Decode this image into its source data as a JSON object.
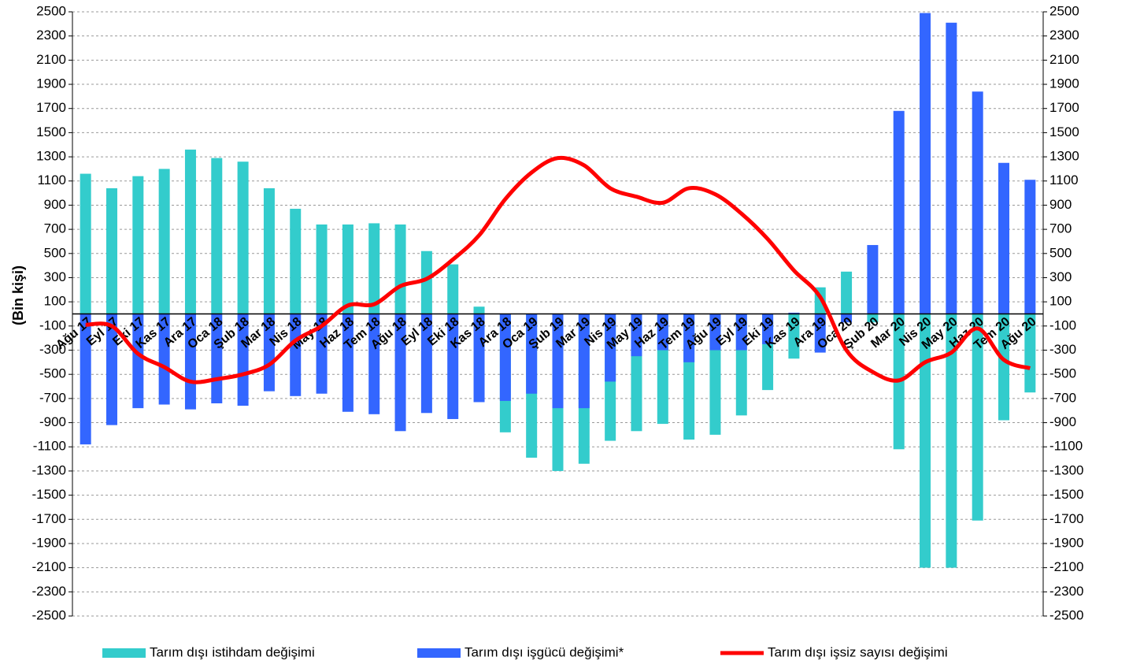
{
  "chart_data": {
    "type": "bar_line",
    "y_label": "(Bin kişi)",
    "categories": [
      "Ağu 17",
      "Eyl 17",
      "Eki 17",
      "Kas 17",
      "Ara 17",
      "Oca 18",
      "Şub 18",
      "Mar 18",
      "Nis 18",
      "May 18",
      "Haz 18",
      "Tem 18",
      "Ağu 18",
      "Eyl 18",
      "Eki 18",
      "Kas 18",
      "Ara 18",
      "Oca 19",
      "Şub 19",
      "Mar 19",
      "Nis 19",
      "May 19",
      "Haz 19",
      "Tem 19",
      "Ağu 19",
      "Eyl 19",
      "Eki 19",
      "Kas 19",
      "Ara 19",
      "Oca 20",
      "Şub 20",
      "Mar 20",
      "Nis 20",
      "May 20",
      "Haz 20",
      "Tem 20",
      "Ağu 20"
    ],
    "series": [
      {
        "name": "Tarım dışı istihdam değişimi",
        "type": "bar",
        "color": "#33cccc",
        "values": [
          1160,
          1040,
          1140,
          1200,
          1360,
          1290,
          1260,
          1040,
          870,
          740,
          740,
          750,
          740,
          520,
          410,
          60,
          -980,
          -1190,
          -1300,
          -1240,
          -1050,
          -970,
          -910,
          -1040,
          -1000,
          -840,
          -630,
          -370,
          220,
          350,
          -70,
          -1120,
          -2100,
          -2100,
          -1710,
          -880,
          -650
        ]
      },
      {
        "name": "Tarım dışı işgücü değişimi*",
        "type": "bar",
        "color": "#3366ff",
        "values": [
          -1080,
          -920,
          -780,
          -750,
          -790,
          -740,
          -760,
          -640,
          -680,
          -660,
          -810,
          -830,
          -970,
          -820,
          -870,
          -730,
          -720,
          -660,
          -780,
          -780,
          -560,
          -350,
          -300,
          -400,
          -300,
          -300,
          -250,
          10,
          -320,
          -70,
          570,
          1680,
          2490,
          2410,
          1840,
          1250,
          1110
        ]
      },
      {
        "name": "Tarım dışı işsiz sayısı değişimi",
        "type": "line",
        "color": "#ff0000",
        "values": [
          -90,
          -100,
          -330,
          -440,
          -560,
          -540,
          -500,
          -420,
          -220,
          -100,
          70,
          80,
          230,
          290,
          450,
          650,
          950,
          1170,
          1290,
          1230,
          1040,
          970,
          920,
          1040,
          990,
          830,
          620,
          360,
          140,
          -300,
          -480,
          -550,
          -400,
          -320,
          -120,
          -380,
          -450
        ]
      }
    ],
    "ylim": [
      -2500,
      2500
    ],
    "yticks": [
      -2500,
      -2300,
      -2100,
      -1900,
      -1700,
      -1500,
      -1300,
      -1100,
      -900,
      -700,
      -500,
      -300,
      -100,
      100,
      300,
      500,
      700,
      900,
      1100,
      1300,
      1500,
      1700,
      1900,
      2100,
      2300,
      2500
    ],
    "y2lim": [
      -2500,
      2500
    ],
    "y2ticks": [
      -2500,
      -2300,
      -2100,
      -1900,
      -1700,
      -1500,
      -1300,
      -1100,
      -900,
      -700,
      -500,
      -300,
      -100,
      100,
      300,
      500,
      700,
      900,
      1100,
      1300,
      1500,
      1700,
      1900,
      2100,
      2300,
      2500
    ],
    "grid": true,
    "legend": "bottom"
  }
}
